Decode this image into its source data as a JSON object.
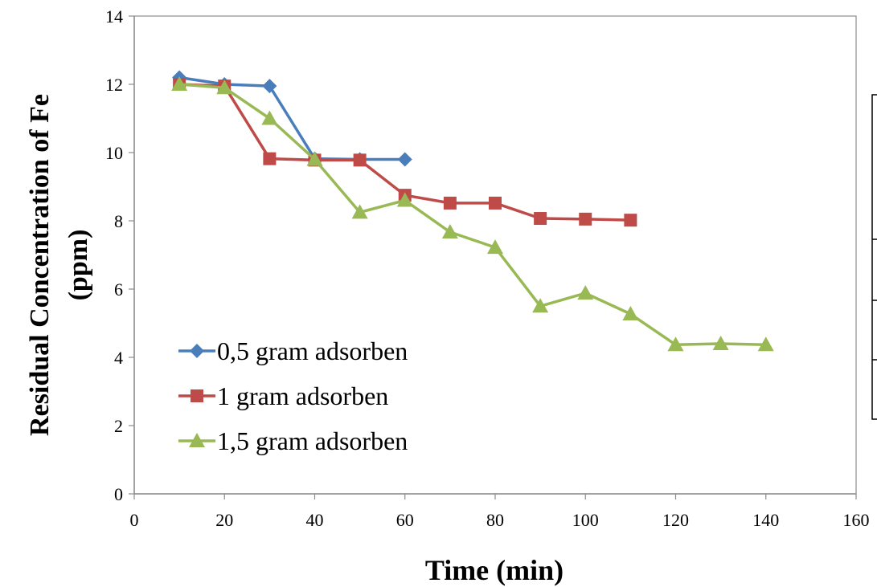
{
  "chart_data": {
    "type": "line",
    "xlabel": "Time (min)",
    "ylabel_line1": "Residual Concentration of  Fe",
    "ylabel_line2": "(ppm)",
    "xlim": [
      0,
      160
    ],
    "ylim": [
      0,
      14
    ],
    "xticks": [
      0,
      20,
      40,
      60,
      80,
      100,
      120,
      140,
      160
    ],
    "yticks": [
      0,
      2,
      4,
      6,
      8,
      10,
      12,
      14
    ],
    "grid": false,
    "legend_position": "bottom-left",
    "series": [
      {
        "name": "0,5 gram adsorben",
        "color": "#4a7ebb",
        "marker": "diamond",
        "x": [
          10,
          20,
          30,
          40,
          50,
          60
        ],
        "y": [
          12.2,
          12.0,
          11.95,
          9.82,
          9.8,
          9.8
        ]
      },
      {
        "name": "1 gram adsorben",
        "color": "#be4b48",
        "marker": "square",
        "x": [
          10,
          20,
          30,
          40,
          50,
          60,
          70,
          80,
          90,
          100,
          110
        ],
        "y": [
          12.0,
          11.95,
          9.82,
          9.78,
          9.78,
          8.75,
          8.52,
          8.52,
          8.07,
          8.05,
          8.02
        ]
      },
      {
        "name": "1,5 gram adsorben",
        "color": "#98b954",
        "marker": "triangle",
        "x": [
          10,
          20,
          30,
          40,
          50,
          60,
          70,
          80,
          90,
          100,
          110,
          120,
          130,
          140
        ],
        "y": [
          12.0,
          11.9,
          11.0,
          9.8,
          8.25,
          8.6,
          7.67,
          7.22,
          5.5,
          5.88,
          5.27,
          4.37,
          4.4,
          4.37
        ]
      }
    ]
  }
}
